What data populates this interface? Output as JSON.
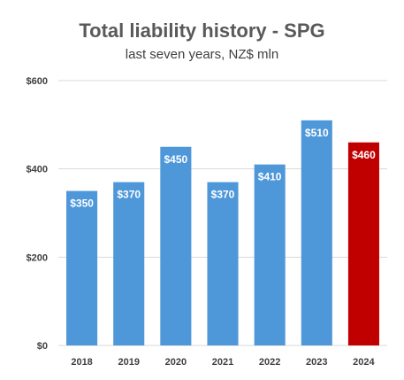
{
  "chart_data": {
    "type": "bar",
    "title": "Total liability history - SPG",
    "subtitle": "last seven years, NZ$ mln",
    "categories": [
      "2018",
      "2019",
      "2020",
      "2021",
      "2022",
      "2023",
      "2024"
    ],
    "values": [
      350,
      370,
      450,
      370,
      410,
      510,
      460
    ],
    "data_labels": [
      "$350",
      "$370",
      "$450",
      "$370",
      "$410",
      "$510",
      "$460"
    ],
    "yticks": [
      0,
      200,
      400,
      600
    ],
    "ytick_labels": [
      "$0",
      "$200",
      "$400",
      "$600"
    ],
    "ylim": [
      0,
      600
    ],
    "grid": true,
    "colors": {
      "default_bar": "#4e97d9",
      "highlight_bar": "#c00000",
      "gridline": "#d9d9d9"
    },
    "highlight_index": 6
  }
}
